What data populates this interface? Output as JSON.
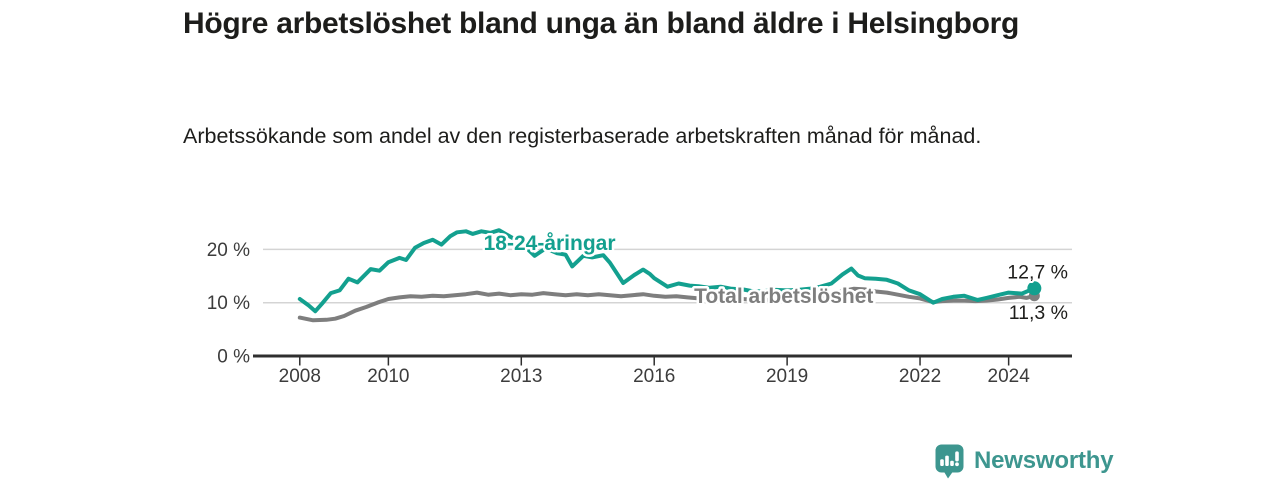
{
  "header": {
    "title": "Högre arbetslöshet bland unga än bland äldre i Helsingborg",
    "subtitle": "Arbetssökande som andel av den registerbaserade arbetskraften månad för månad."
  },
  "footer": {
    "brand": "Newsworthy",
    "logo_icon": "newsworthy-speech-bubble-bar-chart-icon"
  },
  "colors": {
    "young_series": "#13a08f",
    "total_series": "#7e7e7e",
    "gridline": "#d4d4d4",
    "axis": "#2f2f2f",
    "text": "#1d1d1b",
    "brand_teal": "#3d968f"
  },
  "chart_data": {
    "type": "line",
    "title": "Högre arbetslöshet bland unga än bland äldre i Helsingborg",
    "subtitle": "Arbetssökande som andel av den registerbaserade arbetskraften månad för månad.",
    "unit": "%",
    "grid": true,
    "legend_position": "inline-labels",
    "x_axis": {
      "ticks": [
        2008,
        2010,
        2013,
        2016,
        2019,
        2022,
        2024
      ],
      "range": [
        2007.17,
        2025.43
      ]
    },
    "y_axis": {
      "ticks": [
        {
          "value": 0,
          "label": "0 %"
        },
        {
          "value": 10,
          "label": "10 %"
        },
        {
          "value": 20,
          "label": "20 %"
        }
      ],
      "range": [
        0,
        26.45
      ]
    },
    "series": [
      {
        "name": "Total arbetslöshet",
        "color": "#7e7e7e",
        "end_label": "11,3 %",
        "end_value": 11.3,
        "label_pos": [
          2016.9,
          9.9
        ],
        "points": [
          [
            2008.0,
            7.2
          ],
          [
            2008.3,
            6.7
          ],
          [
            2008.6,
            6.8
          ],
          [
            2008.8,
            7.0
          ],
          [
            2009.0,
            7.5
          ],
          [
            2009.25,
            8.5
          ],
          [
            2009.5,
            9.2
          ],
          [
            2009.75,
            10.0
          ],
          [
            2010.0,
            10.7
          ],
          [
            2010.25,
            11.0
          ],
          [
            2010.5,
            11.2
          ],
          [
            2010.75,
            11.1
          ],
          [
            2011.0,
            11.3
          ],
          [
            2011.25,
            11.2
          ],
          [
            2011.5,
            11.4
          ],
          [
            2011.75,
            11.6
          ],
          [
            2012.0,
            11.9
          ],
          [
            2012.25,
            11.5
          ],
          [
            2012.5,
            11.7
          ],
          [
            2012.75,
            11.4
          ],
          [
            2013.0,
            11.6
          ],
          [
            2013.25,
            11.5
          ],
          [
            2013.5,
            11.8
          ],
          [
            2013.75,
            11.6
          ],
          [
            2014.0,
            11.4
          ],
          [
            2014.25,
            11.6
          ],
          [
            2014.5,
            11.4
          ],
          [
            2014.75,
            11.6
          ],
          [
            2015.0,
            11.4
          ],
          [
            2015.25,
            11.2
          ],
          [
            2015.5,
            11.4
          ],
          [
            2015.75,
            11.6
          ],
          [
            2016.0,
            11.3
          ],
          [
            2016.25,
            11.1
          ],
          [
            2016.5,
            11.2
          ],
          [
            2016.75,
            11.0
          ],
          [
            2017.0,
            10.8
          ],
          [
            2017.25,
            10.9
          ],
          [
            2017.5,
            10.7
          ],
          [
            2017.75,
            10.8
          ],
          [
            2018.0,
            10.7
          ],
          [
            2018.25,
            10.5
          ],
          [
            2018.5,
            10.5
          ],
          [
            2018.75,
            10.6
          ],
          [
            2019.0,
            10.5
          ],
          [
            2019.25,
            10.6
          ],
          [
            2019.5,
            10.7
          ],
          [
            2019.75,
            11.0
          ],
          [
            2020.0,
            11.6
          ],
          [
            2020.25,
            12.2
          ],
          [
            2020.5,
            12.6
          ],
          [
            2020.75,
            12.5
          ],
          [
            2021.0,
            12.1
          ],
          [
            2021.25,
            11.9
          ],
          [
            2021.5,
            11.5
          ],
          [
            2021.75,
            11.1
          ],
          [
            2022.0,
            10.8
          ],
          [
            2022.3,
            10.1
          ],
          [
            2022.5,
            10.3
          ],
          [
            2022.75,
            10.4
          ],
          [
            2023.0,
            10.4
          ],
          [
            2023.25,
            10.3
          ],
          [
            2023.5,
            10.4
          ],
          [
            2023.75,
            10.6
          ],
          [
            2024.0,
            10.9
          ],
          [
            2024.25,
            11.1
          ],
          [
            2024.4,
            10.9
          ],
          [
            2024.58,
            11.3
          ]
        ]
      },
      {
        "name": "18-24-åringar",
        "color": "#13a08f",
        "end_label": "12,7 %",
        "end_value": 12.7,
        "label_pos": [
          2012.15,
          19.9
        ],
        "points": [
          [
            2008.0,
            10.7
          ],
          [
            2008.2,
            9.5
          ],
          [
            2008.35,
            8.4
          ],
          [
            2008.5,
            9.8
          ],
          [
            2008.7,
            11.8
          ],
          [
            2008.9,
            12.3
          ],
          [
            2009.1,
            14.5
          ],
          [
            2009.3,
            13.8
          ],
          [
            2009.6,
            16.3
          ],
          [
            2009.8,
            16.0
          ],
          [
            2010.0,
            17.6
          ],
          [
            2010.25,
            18.4
          ],
          [
            2010.4,
            18.0
          ],
          [
            2010.6,
            20.3
          ],
          [
            2010.8,
            21.2
          ],
          [
            2011.0,
            21.8
          ],
          [
            2011.2,
            20.9
          ],
          [
            2011.4,
            22.5
          ],
          [
            2011.55,
            23.2
          ],
          [
            2011.75,
            23.4
          ],
          [
            2011.9,
            22.9
          ],
          [
            2012.1,
            23.4
          ],
          [
            2012.3,
            23.1
          ],
          [
            2012.5,
            23.6
          ],
          [
            2012.75,
            22.4
          ],
          [
            2013.0,
            21.2
          ],
          [
            2013.3,
            18.8
          ],
          [
            2013.55,
            20.2
          ],
          [
            2013.8,
            19.3
          ],
          [
            2014.0,
            19.0
          ],
          [
            2014.15,
            16.8
          ],
          [
            2014.4,
            18.8
          ],
          [
            2014.6,
            18.5
          ],
          [
            2014.85,
            18.9
          ],
          [
            2015.0,
            17.5
          ],
          [
            2015.3,
            13.7
          ],
          [
            2015.55,
            15.2
          ],
          [
            2015.75,
            16.2
          ],
          [
            2015.9,
            15.4
          ],
          [
            2016.0,
            14.6
          ],
          [
            2016.3,
            13.0
          ],
          [
            2016.55,
            13.6
          ],
          [
            2016.8,
            13.2
          ],
          [
            2017.0,
            13.1
          ],
          [
            2017.25,
            12.8
          ],
          [
            2017.5,
            13.0
          ],
          [
            2017.75,
            12.6
          ],
          [
            2018.0,
            12.5
          ],
          [
            2018.25,
            12.1
          ],
          [
            2018.5,
            12.2
          ],
          [
            2018.75,
            12.4
          ],
          [
            2019.0,
            12.3
          ],
          [
            2019.25,
            12.4
          ],
          [
            2019.5,
            12.6
          ],
          [
            2019.75,
            13.0
          ],
          [
            2020.0,
            13.6
          ],
          [
            2020.25,
            15.3
          ],
          [
            2020.45,
            16.4
          ],
          [
            2020.6,
            15.1
          ],
          [
            2020.75,
            14.6
          ],
          [
            2021.0,
            14.5
          ],
          [
            2021.25,
            14.3
          ],
          [
            2021.5,
            13.6
          ],
          [
            2021.75,
            12.3
          ],
          [
            2022.0,
            11.6
          ],
          [
            2022.3,
            10.0
          ],
          [
            2022.5,
            10.7
          ],
          [
            2022.75,
            11.1
          ],
          [
            2023.0,
            11.3
          ],
          [
            2023.3,
            10.5
          ],
          [
            2023.5,
            10.9
          ],
          [
            2023.75,
            11.4
          ],
          [
            2024.0,
            11.9
          ],
          [
            2024.3,
            11.7
          ],
          [
            2024.58,
            12.7
          ]
        ]
      }
    ]
  }
}
